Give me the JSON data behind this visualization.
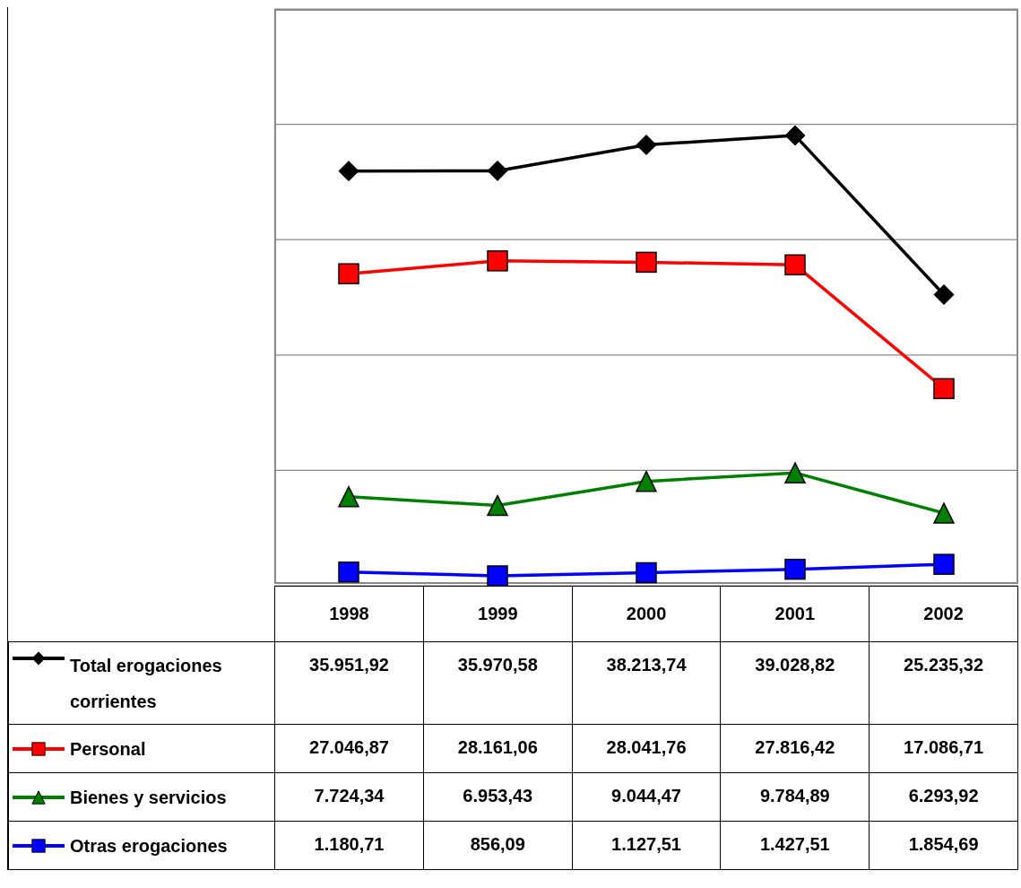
{
  "chart_data": {
    "type": "line",
    "categories": [
      "1998",
      "1999",
      "2000",
      "2001",
      "2002"
    ],
    "series": [
      {
        "name": "Total erogaciones corrientes",
        "color": "#000000",
        "marker": "diamond",
        "values": [
          35951.92,
          35970.58,
          38213.74,
          39028.82,
          25235.32
        ],
        "value_labels": [
          "35.951,92",
          "35.970,58",
          "38.213,74",
          "39.028,82",
          "25.235,32"
        ]
      },
      {
        "name": "Personal",
        "color": "#ff0000",
        "marker": "square",
        "values": [
          27046.87,
          28161.06,
          28041.76,
          27816.42,
          17086.71
        ],
        "value_labels": [
          "27.046,87",
          "28.161,06",
          "28.041,76",
          "27.816,42",
          "17.086,71"
        ]
      },
      {
        "name": "Bienes y servicios",
        "color": "#008000",
        "marker": "triangle",
        "values": [
          7724.34,
          6953.43,
          9044.47,
          9784.89,
          6293.92
        ],
        "value_labels": [
          "7.724,34",
          "6.953,43",
          "9.044,47",
          "9.784,89",
          "6.293,92"
        ]
      },
      {
        "name": "Otras erogaciones",
        "color": "#0000ff",
        "marker": "square",
        "values": [
          1180.71,
          856.09,
          1127.51,
          1427.51,
          1854.69
        ],
        "value_labels": [
          "1.180,71",
          "856,09",
          "1.127,51",
          "1.427,51",
          "1.854,69"
        ]
      }
    ],
    "ylim": [
      0,
      50000
    ],
    "yticks": [
      {
        "value": 0,
        "label": null
      },
      {
        "value": 10000,
        "label": null
      },
      {
        "value": 20000,
        "label": null
      },
      {
        "value": 30000,
        "label": null
      },
      {
        "value": 40000,
        "label": null
      },
      {
        "value": 50000,
        "label": null
      }
    ],
    "grid": "y",
    "legend": "bottom",
    "tick_labels": "x"
  }
}
